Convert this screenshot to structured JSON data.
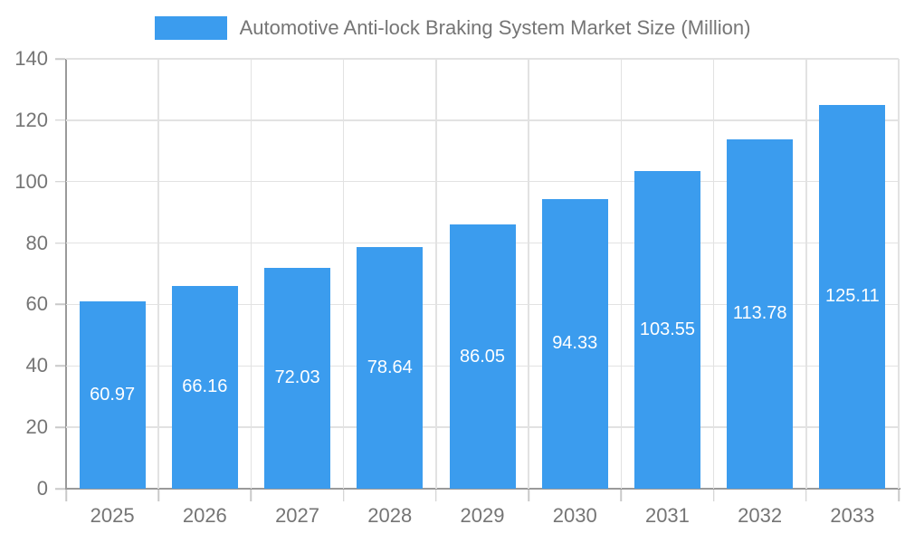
{
  "legend": {
    "label": "Automotive Anti-lock Braking System Market Size (Million)"
  },
  "chart_data": {
    "type": "bar",
    "title": "Automotive Anti-lock Braking System Market Size (Million)",
    "categories": [
      "2025",
      "2026",
      "2027",
      "2028",
      "2029",
      "2030",
      "2031",
      "2032",
      "2033"
    ],
    "values": [
      60.97,
      66.16,
      72.03,
      78.64,
      86.05,
      94.33,
      103.55,
      113.78,
      125.11
    ],
    "xlabel": "",
    "ylabel": "",
    "ylim": [
      0,
      140
    ],
    "ytick_step": 20,
    "grid": true,
    "legend_position": "top",
    "value_label_decimals": 2,
    "colors": {
      "bar": "#3b9cee",
      "bar_label": "#ffffff",
      "axis_text": "#757575",
      "axis_line": "#9a9a9a",
      "gridline": "#e2e2e2",
      "tick": "#c9c9c9",
      "background": "#ffffff"
    }
  }
}
